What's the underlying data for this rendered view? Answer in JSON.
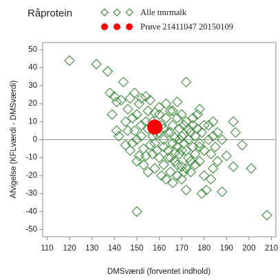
{
  "chart_data": {
    "type": "scatter",
    "title": "Råprotein",
    "xlabel": "DMSværdi (forventet indhold)",
    "ylabel": "Afvigelse (KFLværdi - DMSværdi)",
    "xlim": [
      108,
      212
    ],
    "ylim": [
      -54,
      54
    ],
    "xticks": [
      110,
      120,
      130,
      140,
      150,
      160,
      170,
      180,
      190,
      200,
      210
    ],
    "yticks": [
      -50,
      -40,
      -30,
      -20,
      -10,
      0,
      10,
      20,
      30,
      40,
      50
    ],
    "reference_line": 0,
    "series": [
      {
        "name": "Alle tmrmalk",
        "color": "#3c8c3c",
        "marker": "diamond",
        "x": [
          120,
          132,
          137,
          138,
          140,
          141,
          143,
          144,
          149,
          147,
          152,
          154,
          172,
          168,
          178,
          150,
          208,
          172,
          179,
          183,
          188,
          193,
          201,
          193,
          194,
          197,
          190,
          184,
          180,
          181,
          142,
          145,
          146,
          148,
          149,
          150,
          151,
          152,
          153,
          154,
          155,
          156,
          157,
          158,
          159,
          160,
          160,
          161,
          162,
          162,
          163,
          164,
          164,
          165,
          165,
          166,
          166,
          167,
          167,
          168,
          168,
          169,
          169,
          170,
          170,
          170,
          171,
          171,
          172,
          172,
          173,
          173,
          174,
          174,
          175,
          175,
          176,
          176,
          177,
          178,
          178,
          179,
          180,
          180,
          182,
          183,
          184,
          185,
          186,
          188,
          147,
          150,
          153,
          155,
          158,
          161,
          163,
          166,
          168,
          170,
          172,
          162,
          164,
          159,
          157,
          155,
          152,
          148,
          145,
          139,
          141,
          146,
          156,
          160,
          163,
          166,
          150,
          158,
          165,
          168,
          171,
          174,
          176,
          178,
          182,
          184,
          186,
          177,
          157,
          154,
          151,
          167,
          169,
          171,
          173,
          175,
          160,
          162,
          170,
          165
        ],
        "values": [
          44,
          42,
          38,
          26,
          24,
          21,
          22,
          32,
          26,
          23,
          23,
          24,
          32,
          21,
          17,
          -40,
          -42,
          -28,
          -30,
          -22,
          -29,
          -15,
          -16,
          10,
          4,
          -3,
          -9,
          -16,
          -20,
          -28,
          2,
          10,
          17,
          12,
          5,
          14,
          20,
          2,
          -5,
          10,
          16,
          -3,
          -8,
          15,
          3,
          -10,
          18,
          8,
          0,
          -14,
          12,
          4,
          -6,
          16,
          -18,
          8,
          -2,
          1,
          -12,
          12,
          -4,
          6,
          -8,
          2,
          -15,
          14,
          -2,
          8,
          -6,
          10,
          0,
          -10,
          4,
          -18,
          -4,
          12,
          2,
          -8,
          6,
          -2,
          -12,
          4,
          -6,
          8,
          0,
          -8,
          2,
          -4,
          -12,
          0,
          -6,
          -12,
          -14,
          -18,
          -16,
          -20,
          -22,
          -24,
          -20,
          -22,
          -16,
          -4,
          -10,
          -6,
          2,
          6,
          8,
          -2,
          -3,
          14,
          5,
          5,
          22,
          14,
          20,
          16,
          0,
          -2,
          4,
          -14,
          -18,
          -12,
          -14,
          -4,
          8,
          10,
          4,
          14,
          10,
          -9,
          -9,
          -7,
          0,
          3,
          6,
          8,
          4,
          6,
          -6,
          -10
        ]
      },
      {
        "name": "Prøve 21411047 20150109",
        "color": "#ff0000",
        "marker": "dot",
        "x": [
          158
        ],
        "values": [
          7
        ]
      }
    ]
  }
}
